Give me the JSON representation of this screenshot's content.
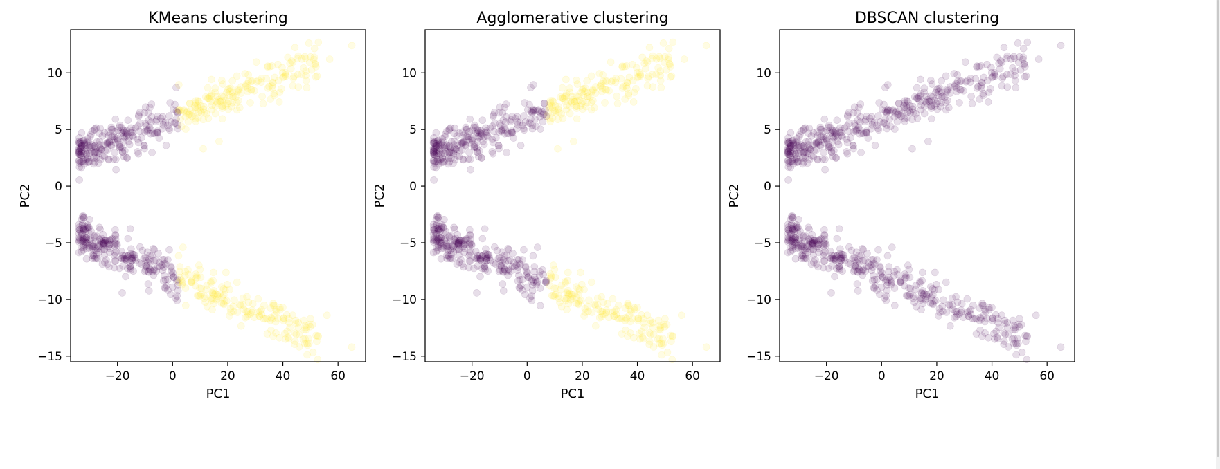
{
  "chart_data": [
    {
      "type": "scatter",
      "title": "KMeans clustering",
      "xlabel": "PC1",
      "ylabel": "PC2",
      "xlim": [
        -37,
        70
      ],
      "ylim": [
        -15.5,
        13.8
      ],
      "xticks": [
        -20,
        0,
        20,
        40,
        60
      ],
      "yticks": [
        -15,
        -10,
        -5,
        0,
        5,
        10
      ],
      "xtick_labels": [
        "−20",
        "0",
        "20",
        "40",
        "60"
      ],
      "ytick_labels": [
        "−15",
        "−10",
        "−5",
        "0",
        "5",
        "10"
      ],
      "split_pc1": 2,
      "series": [
        {
          "color": "#440154",
          "values": "points with PC1 < 2"
        },
        {
          "color": "#fde725",
          "values": "points with PC1 >= 2"
        }
      ]
    },
    {
      "type": "scatter",
      "title": "Agglomerative clustering",
      "xlabel": "PC1",
      "ylabel": "PC2",
      "xlim": [
        -37,
        70
      ],
      "ylim": [
        -15.5,
        13.8
      ],
      "xticks": [
        -20,
        0,
        20,
        40,
        60
      ],
      "yticks": [
        -15,
        -10,
        -5,
        0,
        5,
        10
      ],
      "xtick_labels": [
        "−20",
        "0",
        "20",
        "40",
        "60"
      ],
      "ytick_labels": [
        "−15",
        "−10",
        "−5",
        "0",
        "5",
        "10"
      ],
      "split_pc1": 7,
      "series": [
        {
          "color": "#440154",
          "values": "points with PC1 < 7"
        },
        {
          "color": "#fde725",
          "values": "points with PC1 >= 7"
        }
      ]
    },
    {
      "type": "scatter",
      "title": "DBSCAN clustering",
      "xlabel": "PC1",
      "ylabel": "PC2",
      "xlim": [
        -37,
        70
      ],
      "ylim": [
        -15.5,
        13.8
      ],
      "xticks": [
        -20,
        0,
        20,
        40,
        60
      ],
      "yticks": [
        -15,
        -10,
        -5,
        0,
        5,
        10
      ],
      "xtick_labels": [
        "−20",
        "0",
        "20",
        "40",
        "60"
      ],
      "ytick_labels": [
        "−15",
        "−10",
        "−5",
        "0",
        "5",
        "10"
      ],
      "split_pc1": 1000,
      "series": [
        {
          "color": "#440154",
          "values": "all points"
        }
      ]
    }
  ],
  "points": {
    "upper_band": {
      "pc1_range": [
        -34,
        65
      ],
      "pc2_at_pc1_-34": 3.0,
      "slope": 0.09,
      "n": 420
    },
    "lower_band": {
      "pc1_range": [
        -34,
        65
      ],
      "pc2_at_pc1_-34": -4.3,
      "slope": -0.105,
      "n": 420
    },
    "outliers": [
      [
        65,
        12.4
      ],
      [
        65,
        -14.2
      ],
      [
        57,
        11.2
      ],
      [
        56,
        -11.4
      ],
      [
        50,
        11.4
      ],
      [
        50,
        -11.7
      ]
    ]
  },
  "style": {
    "marker_alpha": 0.13,
    "colors": {
      "cluster0": "#440154",
      "cluster1": "#fde725"
    }
  }
}
